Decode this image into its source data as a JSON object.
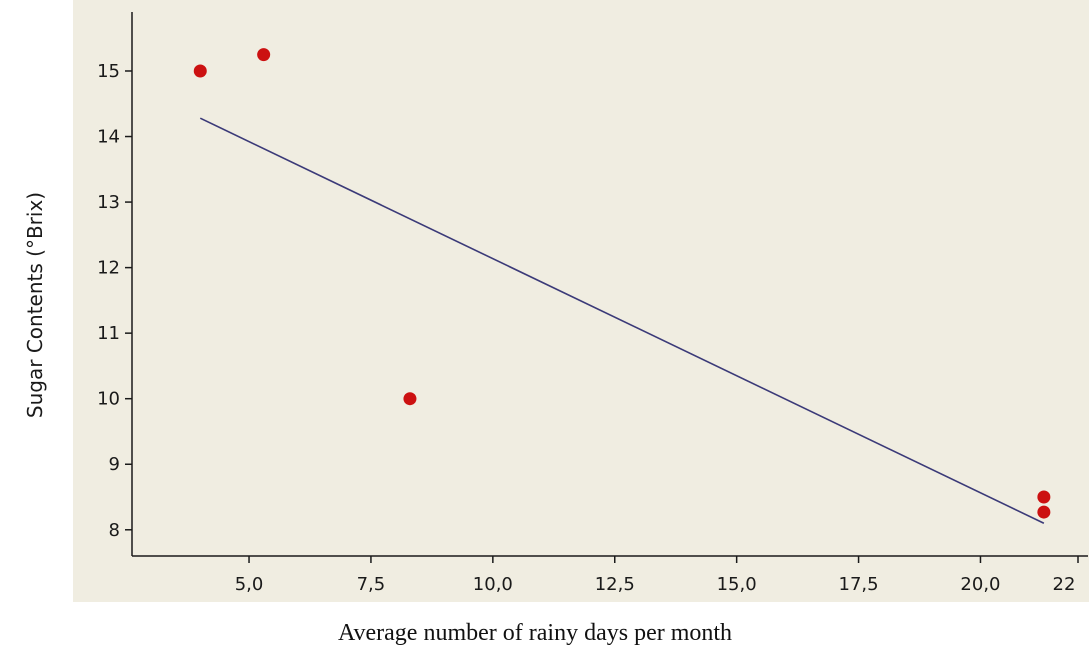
{
  "chart_data": {
    "type": "scatter",
    "title": "",
    "xlabel": "Average number of rainy days per month",
    "ylabel": "Sugar Contents (°Brix)",
    "xlim": [
      2.6,
      22.0
    ],
    "ylim": [
      7.6,
      15.9
    ],
    "x_ticks": [
      5.0,
      7.5,
      10.0,
      12.5,
      15.0,
      17.5,
      20.0,
      22.0
    ],
    "x_tick_labels": [
      "5,0",
      "7,5",
      "10,0",
      "12,5",
      "15,0",
      "17,5",
      "20,0",
      "22"
    ],
    "y_ticks": [
      8,
      9,
      10,
      11,
      12,
      13,
      14,
      15
    ],
    "y_tick_labels": [
      "8",
      "9",
      "10",
      "11",
      "12",
      "13",
      "14",
      "15"
    ],
    "grid": false,
    "legend": "none",
    "series": [
      {
        "x": [
          4.0,
          5.3,
          8.3,
          21.3,
          21.3
        ],
        "y": [
          15.0,
          15.25,
          10.0,
          8.5,
          8.27
        ]
      }
    ],
    "trendline": {
      "x": [
        4.0,
        21.3
      ],
      "y": [
        14.28,
        8.1
      ]
    },
    "colors": {
      "background": "#f0ede1",
      "points": "#cc1111",
      "line": "#3b3a78",
      "axis": "#1a1a1a"
    }
  }
}
